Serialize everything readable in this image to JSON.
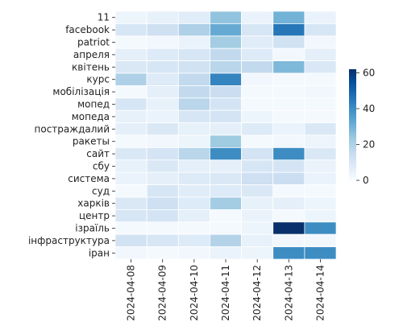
{
  "chart_data": {
    "type": "heatmap",
    "x": [
      "2024-04-08",
      "2024-04-09",
      "2024-04-10",
      "2024-04-11",
      "2024-04-12",
      "2024-04-13",
      "2024-04-14"
    ],
    "y": [
      "11",
      "facebook",
      "patriot",
      "апреля",
      "квітень",
      "курс",
      "мобілізація",
      "мопед",
      "мопеда",
      "постраждалий",
      "ракеты",
      "сайт",
      "сбу",
      "система",
      "суд",
      "харків",
      "центр",
      "ізраїль",
      "інфраструктура",
      "іран"
    ],
    "values": [
      [
        3,
        5,
        7,
        25,
        4,
        30,
        4
      ],
      [
        10,
        13,
        20,
        32,
        10,
        45,
        10
      ],
      [
        1,
        2,
        4,
        22,
        7,
        12,
        2
      ],
      [
        6,
        8,
        10,
        16,
        8,
        2,
        6
      ],
      [
        9,
        10,
        12,
        18,
        16,
        28,
        9
      ],
      [
        20,
        8,
        16,
        42,
        2,
        1,
        1
      ],
      [
        1,
        6,
        16,
        14,
        1,
        1,
        2
      ],
      [
        10,
        5,
        18,
        11,
        1,
        1,
        1
      ],
      [
        5,
        4,
        10,
        11,
        3,
        1,
        1
      ],
      [
        6,
        9,
        5,
        6,
        8,
        4,
        9
      ],
      [
        1,
        2,
        3,
        23,
        1,
        2,
        3
      ],
      [
        9,
        11,
        18,
        40,
        11,
        40,
        9
      ],
      [
        5,
        9,
        6,
        6,
        10,
        11,
        4
      ],
      [
        4,
        6,
        8,
        9,
        13,
        14,
        4
      ],
      [
        1,
        10,
        7,
        8,
        9,
        1,
        1
      ],
      [
        9,
        13,
        8,
        22,
        5,
        6,
        3
      ],
      [
        10,
        11,
        6,
        1,
        4,
        1,
        3
      ],
      [
        1,
        1,
        1,
        1,
        3,
        62,
        40
      ],
      [
        12,
        10,
        8,
        19,
        5,
        2,
        2
      ],
      [
        2,
        1,
        2,
        4,
        3,
        40,
        40
      ]
    ],
    "colorbar": {
      "min": 0,
      "max": 62,
      "ticks": [
        0,
        20,
        40,
        60
      ]
    },
    "colors": {
      "low": "#f7fbff",
      "mid": "#6baed6",
      "high": "#08306b"
    },
    "grid": false
  }
}
